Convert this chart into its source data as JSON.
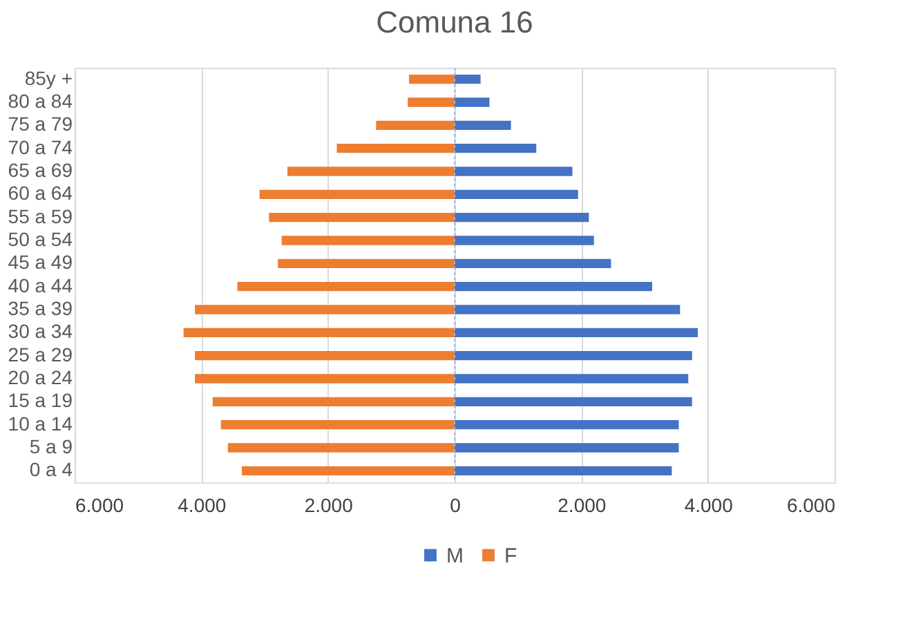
{
  "chart_data": {
    "type": "bar",
    "orientation": "horizontal",
    "title": "Comuna 16",
    "categories": [
      "85y +",
      "80 a 84",
      "75 a 79",
      "70 a 74",
      "65 a 69",
      "60 a 64",
      "55 a 59",
      "50 a 54",
      "45 a 49",
      "40 a 44",
      "35 a 39",
      "30 a 34",
      "25 a 29",
      "20 a 24",
      "15 a 19",
      "10 a 14",
      "5 a 9",
      "0 a 4"
    ],
    "series": [
      {
        "name": "M",
        "color": "#4472c4",
        "values": [
          410,
          550,
          890,
          1290,
          1860,
          1950,
          2120,
          2200,
          2470,
          3120,
          3560,
          3840,
          3750,
          3690,
          3750,
          3540,
          3540,
          3430
        ]
      },
      {
        "name": "F",
        "color": "#ed7d31",
        "values": [
          -720,
          -740,
          -1240,
          -1860,
          -2640,
          -3080,
          -2930,
          -2730,
          -2790,
          -3430,
          -4100,
          -4280,
          -4100,
          -4100,
          -3820,
          -3690,
          -3580,
          -3360
        ]
      }
    ],
    "xlim": [
      -6000,
      6000
    ],
    "xticks": [
      {
        "value": -6000,
        "label": "6.000"
      },
      {
        "value": -4000,
        "label": "4.000"
      },
      {
        "value": -2000,
        "label": "2.000"
      },
      0,
      {
        "value": 2000,
        "label": "2.000"
      },
      {
        "value": 4000,
        "label": "4.000"
      },
      {
        "value": 6000,
        "label": "6.000"
      }
    ],
    "stacked": true,
    "ref_lines": [
      {
        "axis": "x",
        "value": 0,
        "color": "#a6b8d8",
        "line_style": "dotted"
      }
    ],
    "grid": "x",
    "legend": "bottom"
  }
}
